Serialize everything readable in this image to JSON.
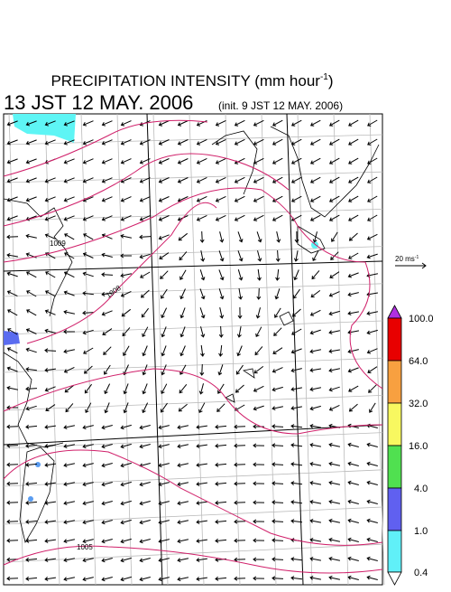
{
  "header": {
    "title": "PRECIPITATION INTENSITY (mm hour",
    "title_superscript": "-1",
    "title_close": ")",
    "valid_time": "13 JST 12 MAY. 2006",
    "init_time": "(init. 9 JST 12 MAY. 2006)"
  },
  "wind_scale": {
    "label": "20 ms",
    "superscript": "-1"
  },
  "isobars": [
    {
      "label": "1009"
    },
    {
      "label": "1008"
    },
    {
      "label": "1005"
    }
  ],
  "colorbar": {
    "labels": [
      "100.0",
      "64.0",
      "32.0",
      "16.0",
      "4.0",
      "1.0",
      "0.4"
    ]
  }
}
